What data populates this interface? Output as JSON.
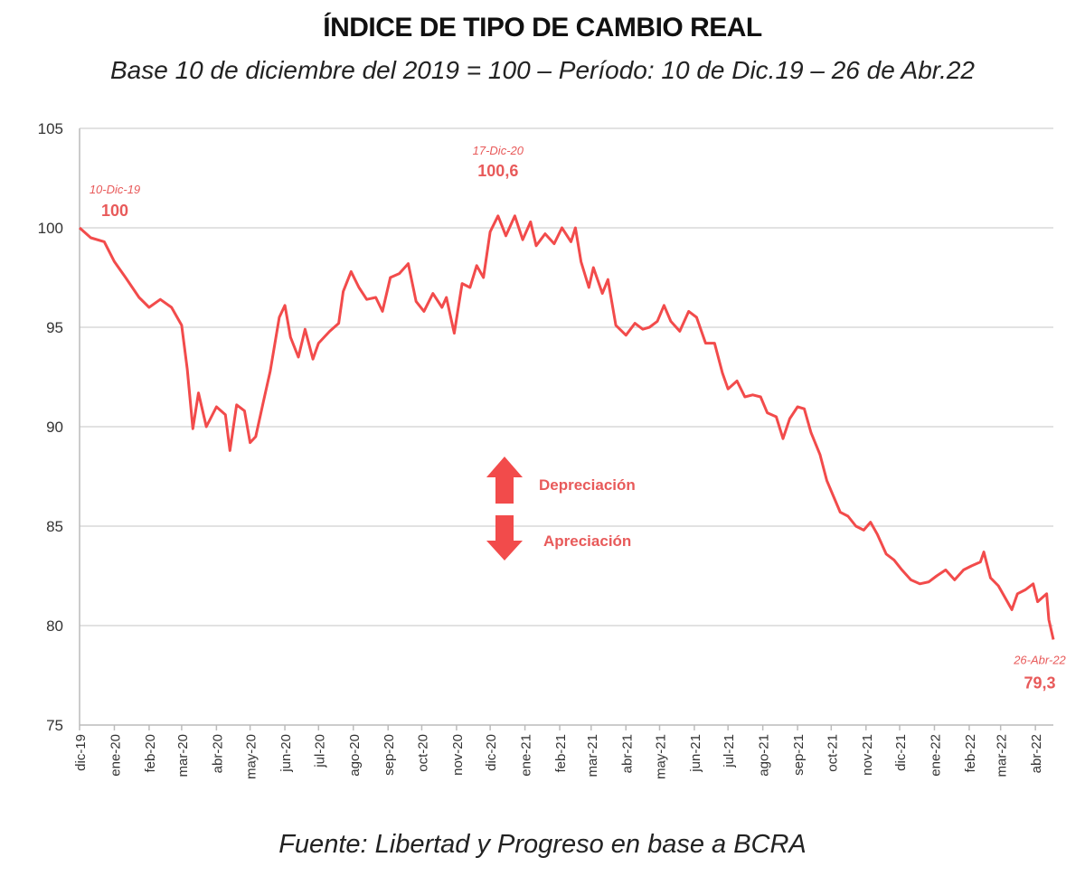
{
  "chart_data": {
    "type": "line",
    "title": "ÍNDICE DE TIPO DE CAMBIO REAL",
    "subtitle": "Base 10 de diciembre del 2019 = 100 – Período: 10 de Dic.19 – 26 de Abr.22",
    "source": "Fuente: Libertad y Progreso en base a BCRA",
    "xlabel": "",
    "ylabel": "",
    "ylim": [
      75,
      105
    ],
    "yticks": [
      75,
      80,
      85,
      90,
      95,
      100,
      105
    ],
    "xlim": [
      "2019-12-10",
      "2022-04-26"
    ],
    "xtick_labels": [
      "dic-19",
      "ene-20",
      "feb-20",
      "mar-20",
      "abr-20",
      "may-20",
      "jun-20",
      "jul-20",
      "ago-20",
      "sep-20",
      "oct-20",
      "nov-20",
      "dic-20",
      "ene-21",
      "feb-21",
      "mar-21",
      "abr-21",
      "may-21",
      "jun-21",
      "jul-21",
      "ago-21",
      "sep-21",
      "oct-21",
      "nov-21",
      "dic-21",
      "ene-22",
      "feb-22",
      "mar-22",
      "abr-22"
    ],
    "grid": "horizontal",
    "line_color": "#f24b4b",
    "annotation_color": "#e85a5a",
    "annotations": [
      {
        "date": "2019-12-10",
        "label": "10-Dic-19",
        "value": "100"
      },
      {
        "date": "2020-12-17",
        "label": "17-Dic-20",
        "value": "100,6"
      },
      {
        "date": "2022-04-26",
        "label": "26-Abr-22",
        "value": "79,3"
      }
    ],
    "legend_arrows": {
      "up": "Depreciación",
      "down": "Apreciación"
    },
    "series": [
      {
        "x": [
          "2019-12-10",
          "2019-12-20",
          "2020-01-01",
          "2020-01-10",
          "2020-01-20",
          "2020-02-01",
          "2020-02-10",
          "2020-02-20",
          "2020-03-01",
          "2020-03-10",
          "2020-03-15",
          "2020-03-20",
          "2020-03-25",
          "2020-04-01",
          "2020-04-10",
          "2020-04-18",
          "2020-04-22",
          "2020-04-28",
          "2020-05-05",
          "2020-05-10",
          "2020-05-15",
          "2020-05-22",
          "2020-05-28",
          "2020-06-05",
          "2020-06-10",
          "2020-06-15",
          "2020-06-22",
          "2020-06-28",
          "2020-07-05",
          "2020-07-10",
          "2020-07-20",
          "2020-07-28",
          "2020-08-01",
          "2020-08-08",
          "2020-08-15",
          "2020-08-22",
          "2020-08-30",
          "2020-09-05",
          "2020-09-12",
          "2020-09-20",
          "2020-09-28",
          "2020-10-05",
          "2020-10-12",
          "2020-10-20",
          "2020-10-28",
          "2020-11-01",
          "2020-11-08",
          "2020-11-15",
          "2020-11-22",
          "2020-11-28",
          "2020-12-04",
          "2020-12-10",
          "2020-12-17",
          "2020-12-24",
          "2021-01-01",
          "2021-01-08",
          "2021-01-15",
          "2021-01-20",
          "2021-01-28",
          "2021-02-05",
          "2021-02-12",
          "2021-02-20",
          "2021-02-24",
          "2021-03-01",
          "2021-03-08",
          "2021-03-12",
          "2021-03-20",
          "2021-03-25",
          "2021-04-01",
          "2021-04-10",
          "2021-04-18",
          "2021-04-25",
          "2021-05-01",
          "2021-05-08",
          "2021-05-14",
          "2021-05-20",
          "2021-05-28",
          "2021-06-05",
          "2021-06-12",
          "2021-06-20",
          "2021-06-28",
          "2021-07-05",
          "2021-07-10",
          "2021-07-18",
          "2021-07-25",
          "2021-08-01",
          "2021-08-08",
          "2021-08-14",
          "2021-08-22",
          "2021-08-28",
          "2021-09-03",
          "2021-09-10",
          "2021-09-16",
          "2021-09-22",
          "2021-09-30",
          "2021-10-06",
          "2021-10-12",
          "2021-10-18",
          "2021-10-25",
          "2021-11-01",
          "2021-11-08",
          "2021-11-14",
          "2021-11-20",
          "2021-11-28",
          "2021-12-05",
          "2021-12-12",
          "2021-12-20",
          "2021-12-28",
          "2022-01-05",
          "2022-01-12",
          "2022-01-20",
          "2022-01-28",
          "2022-02-05",
          "2022-02-12",
          "2022-02-20",
          "2022-02-23",
          "2022-03-01",
          "2022-03-08",
          "2022-03-15",
          "2022-03-20",
          "2022-03-25",
          "2022-04-01",
          "2022-04-08",
          "2022-04-12",
          "2022-04-20",
          "2022-04-22",
          "2022-04-26"
        ],
        "values": [
          100,
          99.5,
          99.3,
          98.3,
          97.5,
          96.5,
          96.0,
          96.4,
          96.0,
          95.1,
          92.9,
          89.9,
          91.7,
          90.0,
          91.0,
          90.6,
          88.8,
          91.1,
          90.8,
          89.2,
          89.5,
          91.3,
          92.8,
          95.5,
          96.1,
          94.5,
          93.5,
          94.9,
          93.4,
          94.2,
          94.8,
          95.2,
          96.8,
          97.8,
          97.0,
          96.4,
          96.5,
          95.8,
          97.5,
          97.7,
          98.2,
          96.3,
          95.8,
          96.7,
          96.0,
          96.5,
          94.7,
          97.2,
          97.0,
          98.1,
          97.5,
          99.8,
          100.6,
          99.6,
          100.6,
          99.4,
          100.3,
          99.1,
          99.7,
          99.2,
          100.0,
          99.3,
          100.0,
          98.3,
          97.0,
          98.0,
          96.7,
          97.4,
          95.1,
          94.6,
          95.2,
          94.9,
          95.0,
          95.3,
          96.1,
          95.3,
          94.8,
          95.8,
          95.5,
          94.2,
          94.2,
          92.7,
          91.9,
          92.3,
          91.5,
          91.6,
          91.5,
          90.7,
          90.5,
          89.4,
          90.4,
          91.0,
          90.9,
          89.7,
          88.6,
          87.3,
          86.5,
          85.7,
          85.5,
          85.0,
          84.8,
          85.2,
          84.6,
          83.6,
          83.3,
          82.8,
          82.3,
          82.1,
          82.2,
          82.5,
          82.8,
          82.3,
          82.8,
          83.0,
          83.2,
          83.7,
          82.4,
          82.0,
          81.3,
          80.8,
          81.6,
          81.8,
          82.1,
          81.2,
          81.6,
          80.3,
          79.3
        ]
      }
    ]
  }
}
